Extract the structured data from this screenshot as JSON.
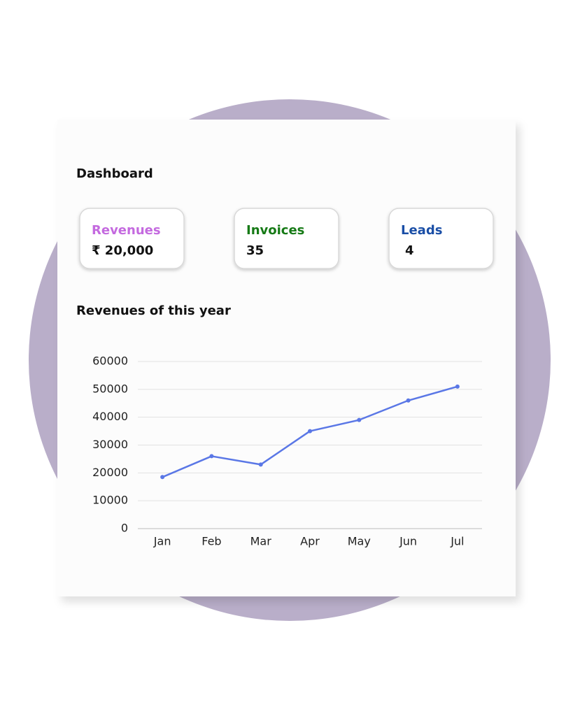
{
  "title": "Dashboard",
  "cards": [
    {
      "label": "Revenues",
      "value": "₹ 20,000",
      "color": "#c46adf"
    },
    {
      "label": "Invoices",
      "value": 35,
      "color": "#167a16"
    },
    {
      "label": "Leads",
      "value": 4,
      "color": "#1a4ea6"
    }
  ],
  "chart_data": {
    "type": "line",
    "title": "Revenues of this year",
    "categories": [
      "Jan",
      "Feb",
      "Mar",
      "Apr",
      "May",
      "Jun",
      "Jul"
    ],
    "values": [
      18500,
      26000,
      23000,
      35000,
      39000,
      46000,
      51000
    ],
    "color": "#5a77e6",
    "ylim": [
      0,
      60000
    ],
    "yticks": [
      0,
      10000,
      20000,
      30000,
      40000,
      50000,
      60000
    ],
    "grid": true
  }
}
